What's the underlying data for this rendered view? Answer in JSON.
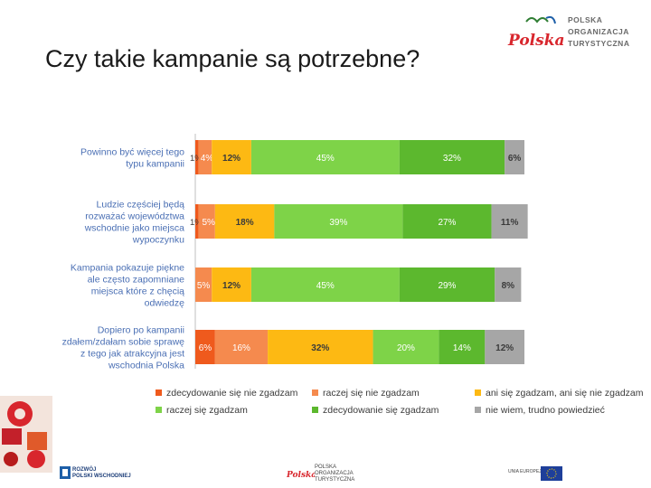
{
  "slide": {
    "title": "Czy takie kampanie są potrzebne?"
  },
  "header_logo": {
    "mark": "Polska",
    "lines": [
      "POLSKA",
      "ORGANIZACJA",
      "TURYSTYCZNA"
    ]
  },
  "footer": {
    "left_logo": [
      "ROZWÓJ",
      "POLSKI WSCHODNIEJ"
    ],
    "center_logo": {
      "mark": "Polska",
      "lines": [
        "POLSKA",
        "ORGANIZACJA",
        "TURYSTYCZNA"
      ]
    },
    "right_logo": [
      "UNIA EUROPEJSKA"
    ]
  },
  "colors": {
    "zdecydowanie_nie": "#ef5a1d",
    "raczej_nie": "#f58a4e",
    "ani": "#fdb913",
    "raczej_tak": "#7ed348",
    "zdecydowanie_tak": "#5cb82e",
    "nie_wiem": "#a6a6a6",
    "label_text": "#4a6fb4"
  },
  "chart_data": {
    "type": "bar",
    "orientation": "horizontal",
    "stacked": true,
    "title": "",
    "xlim": [
      0,
      100
    ],
    "categories": [
      [
        "Powinno być więcej tego",
        "typu kampanii"
      ],
      [
        "Ludzie częściej będą",
        "rozważać województwa",
        "wschodnie jako miejsca",
        "wypoczynku"
      ],
      [
        "Kampania pokazuje piękne",
        "ale często zapomniane",
        "miejsca które z chęcią",
        "odwiedzę"
      ],
      [
        "Dopiero po kampanii",
        "zdałem/zdałam sobie sprawę",
        "z tego jak atrakcyjna jest",
        "wschodnia Polska"
      ]
    ],
    "series": [
      {
        "name": "zdecydowanie się nie zgadzam",
        "color": "#ef5a1d",
        "values": [
          1,
          1,
          0,
          6
        ],
        "labels": [
          "1%",
          "1%",
          "",
          "6%"
        ]
      },
      {
        "name": "raczej się nie  zgadzam",
        "color": "#f58a4e",
        "values": [
          4,
          5,
          5,
          16
        ],
        "labels": [
          "4%",
          "5%",
          "5%",
          "16%"
        ]
      },
      {
        "name": "ani się zgadzam, ani się nie zgadzam",
        "color": "#fdb913",
        "values": [
          12,
          18,
          12,
          32
        ],
        "labels": [
          "12%",
          "18%",
          "12%",
          "32%"
        ]
      },
      {
        "name": "raczej się zgadzam",
        "color": "#7ed348",
        "values": [
          45,
          39,
          45,
          20
        ],
        "labels": [
          "45%",
          "39%",
          "45%",
          "20%"
        ]
      },
      {
        "name": "zdecydowanie się zgadzam",
        "color": "#5cb82e",
        "values": [
          32,
          27,
          29,
          14
        ],
        "labels": [
          "32%",
          "27%",
          "29%",
          "14%"
        ]
      },
      {
        "name": "nie wiem, trudno powiedzieć",
        "color": "#a6a6a6",
        "values": [
          6,
          11,
          8,
          12
        ],
        "labels": [
          "6%",
          "11%",
          "8%",
          "12%"
        ]
      }
    ],
    "legend_position": "bottom"
  }
}
